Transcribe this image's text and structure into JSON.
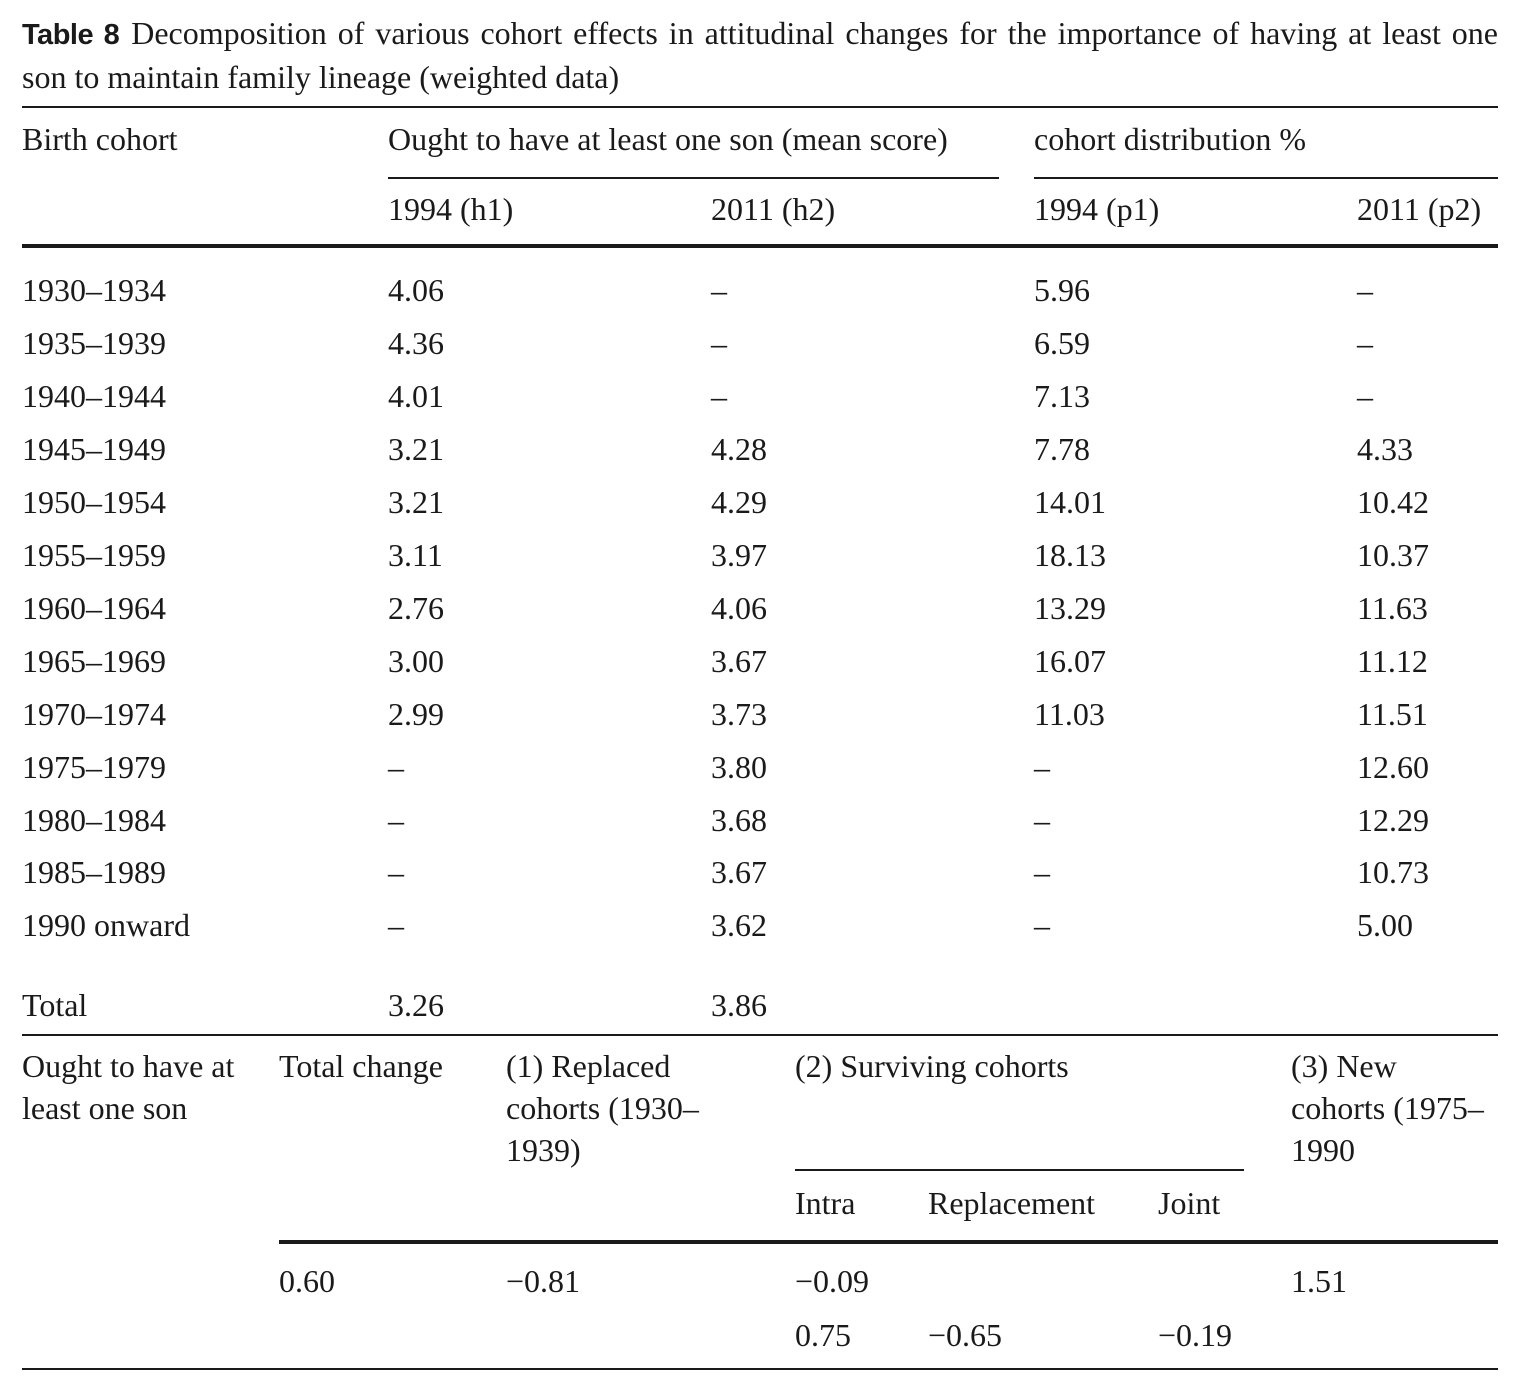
{
  "caption": {
    "label": "Table 8",
    "text": "Decomposition of various cohort effects in attitudinal changes for the importance of having at least one son to maintain family lineage (weighted data)"
  },
  "header": {
    "birth_cohort": "Birth cohort",
    "group_mean": "Ought to have at least one son (mean score)",
    "group_dist": "cohort distribution %",
    "h1": "1994 (h1)",
    "h2": "2011 (h2)",
    "p1": "1994 (p1)",
    "p2": "2011 (p2)"
  },
  "rows": [
    {
      "cohort": "1930–1934",
      "h1": "4.06",
      "h2": "–",
      "p1": "5.96",
      "p2": "–"
    },
    {
      "cohort": "1935–1939",
      "h1": "4.36",
      "h2": "–",
      "p1": "6.59",
      "p2": "–"
    },
    {
      "cohort": "1940–1944",
      "h1": "4.01",
      "h2": "–",
      "p1": "7.13",
      "p2": "–"
    },
    {
      "cohort": "1945–1949",
      "h1": "3.21",
      "h2": "4.28",
      "p1": "7.78",
      "p2": "4.33"
    },
    {
      "cohort": "1950–1954",
      "h1": "3.21",
      "h2": "4.29",
      "p1": "14.01",
      "p2": "10.42"
    },
    {
      "cohort": "1955–1959",
      "h1": "3.11",
      "h2": "3.97",
      "p1": "18.13",
      "p2": "10.37"
    },
    {
      "cohort": "1960–1964",
      "h1": "2.76",
      "h2": "4.06",
      "p1": "13.29",
      "p2": "11.63"
    },
    {
      "cohort": "1965–1969",
      "h1": "3.00",
      "h2": "3.67",
      "p1": "16.07",
      "p2": "11.12"
    },
    {
      "cohort": "1970–1974",
      "h1": "2.99",
      "h2": "3.73",
      "p1": "11.03",
      "p2": "11.51"
    },
    {
      "cohort": "1975–1979",
      "h1": "–",
      "h2": "3.80",
      "p1": "–",
      "p2": "12.60"
    },
    {
      "cohort": "1980–1984",
      "h1": "–",
      "h2": "3.68",
      "p1": "–",
      "p2": "12.29"
    },
    {
      "cohort": "1985–1989",
      "h1": "–",
      "h2": "3.67",
      "p1": "–",
      "p2": "10.73"
    },
    {
      "cohort": "1990 onward",
      "h1": "–",
      "h2": "3.62",
      "p1": "–",
      "p2": "5.00"
    }
  ],
  "total": {
    "label": "Total",
    "h1": "3.26",
    "h2": "3.86"
  },
  "decomp": {
    "row_label": "Ought to have at least one son",
    "col_total": "Total change",
    "col_replaced": "(1) Replaced cohorts (1930–1939)",
    "col_surviving": "(2) Surviving cohorts",
    "col_new": "(3) New cohorts (1975–1990",
    "sub_intra": "Intra",
    "sub_replacement": "Replacement",
    "sub_joint": "Joint",
    "val_total": "0.60",
    "val_replaced": "−0.81",
    "val_surviving": "−0.09",
    "val_new": "1.51",
    "val_intra": "0.75",
    "val_replacement": "−0.65",
    "val_joint": "−0.19"
  }
}
